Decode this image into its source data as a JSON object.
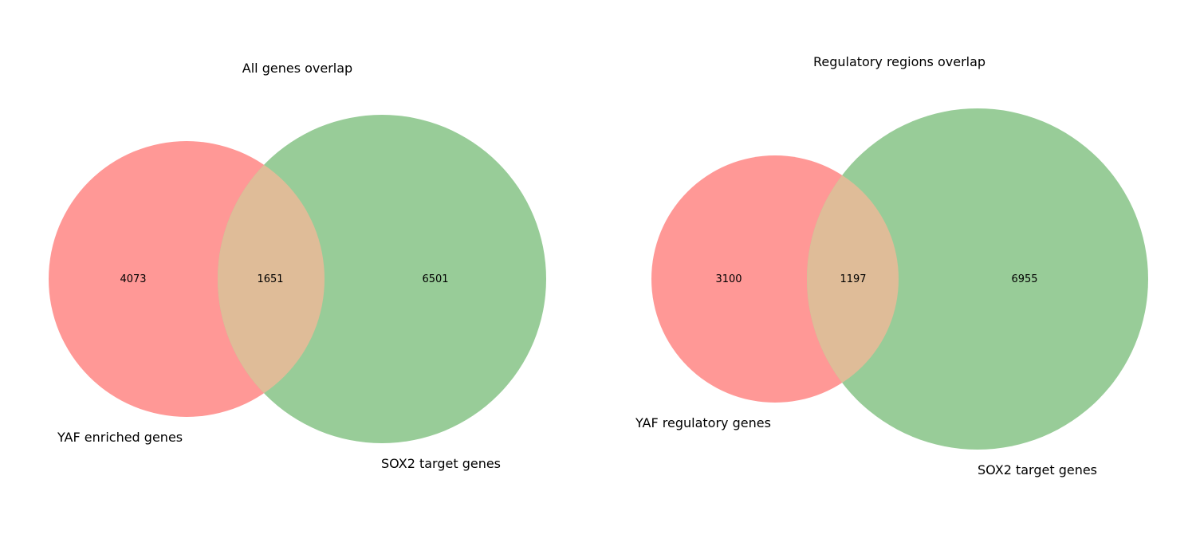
{
  "panels": [
    {
      "title": "All genes overlap",
      "set_a": {
        "label": "YAF enriched genes",
        "only_count": "4073"
      },
      "overlap_count": "1651",
      "set_b": {
        "label": "SOX2 target genes",
        "only_count": "6501"
      }
    },
    {
      "title": "Regulatory regions overlap",
      "set_a": {
        "label": "YAF regulatory genes",
        "only_count": "3100"
      },
      "overlap_count": "1197",
      "set_b": {
        "label": "SOX2 target genes",
        "only_count": "6955"
      }
    }
  ],
  "colors": {
    "set_a": "#ff9896",
    "set_b": "#98cc98",
    "overlap": "#dfbc98"
  }
}
